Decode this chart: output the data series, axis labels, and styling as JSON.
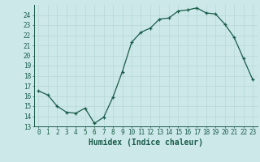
{
  "x": [
    0,
    1,
    2,
    3,
    4,
    5,
    6,
    7,
    8,
    9,
    10,
    11,
    12,
    13,
    14,
    15,
    16,
    17,
    18,
    19,
    20,
    21,
    22,
    23
  ],
  "y": [
    16.5,
    16.1,
    15.0,
    14.4,
    14.3,
    14.8,
    13.3,
    13.9,
    15.9,
    18.4,
    21.3,
    22.3,
    22.7,
    23.6,
    23.7,
    24.4,
    24.5,
    24.7,
    24.2,
    24.1,
    23.1,
    21.8,
    19.7,
    17.6
  ],
  "xlim": [
    -0.5,
    23.5
  ],
  "ylim": [
    13,
    25
  ],
  "yticks": [
    13,
    14,
    15,
    16,
    17,
    18,
    19,
    20,
    21,
    22,
    23,
    24
  ],
  "xticks": [
    0,
    1,
    2,
    3,
    4,
    5,
    6,
    7,
    8,
    9,
    10,
    11,
    12,
    13,
    14,
    15,
    16,
    17,
    18,
    19,
    20,
    21,
    22,
    23
  ],
  "xlabel": "Humidex (Indice chaleur)",
  "line_color": "#1a5c4a",
  "bg_color": "#cce8e8",
  "grid_color": "#b8d8d8",
  "tick_label_fontsize": 5.5,
  "xlabel_fontsize": 7.0
}
